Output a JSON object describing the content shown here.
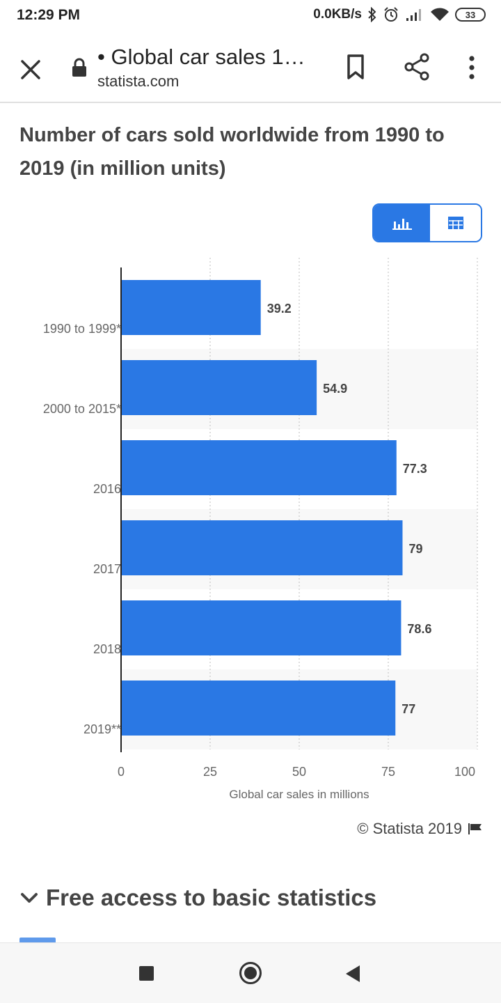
{
  "status_bar": {
    "time": "12:29 PM",
    "network_speed": "0.0KB/s",
    "battery": "33",
    "icons": [
      "bluetooth-icon",
      "alarm-icon",
      "signal-icon",
      "wifi-icon",
      "battery-icon"
    ]
  },
  "browser": {
    "page_title": "• Global car sales 1…",
    "url": "statista.com",
    "icons": [
      "close-icon",
      "lock-icon",
      "bookmark-icon",
      "share-icon",
      "more-vert-icon"
    ]
  },
  "content": {
    "title": "Number of cars sold worldwide from 1990 to 2019 (in million units)",
    "view_toggle": {
      "active": "chart",
      "chart_icon": "bar-chart-icon",
      "table_icon": "table-icon"
    },
    "copyright": "© Statista 2019",
    "free_access": "Free access to basic statistics"
  },
  "colors": {
    "bar": "#2a78e4",
    "accent": "#2a78e4",
    "band": "#f8f8f8"
  },
  "chart_data": {
    "type": "bar",
    "orientation": "horizontal",
    "categories": [
      "1990 to 1999*",
      "2000 to 2015*",
      "2016",
      "2017",
      "2018",
      "2019**"
    ],
    "values": [
      39.2,
      54.9,
      77.3,
      79,
      78.6,
      77
    ],
    "value_labels": [
      "39.2",
      "54.9",
      "77.3",
      "79",
      "78.6",
      "77"
    ],
    "xlabel": "Global car sales in millions",
    "xlim": [
      0,
      100
    ],
    "xticks": [
      0,
      25,
      50,
      75,
      100
    ],
    "grid": true
  }
}
